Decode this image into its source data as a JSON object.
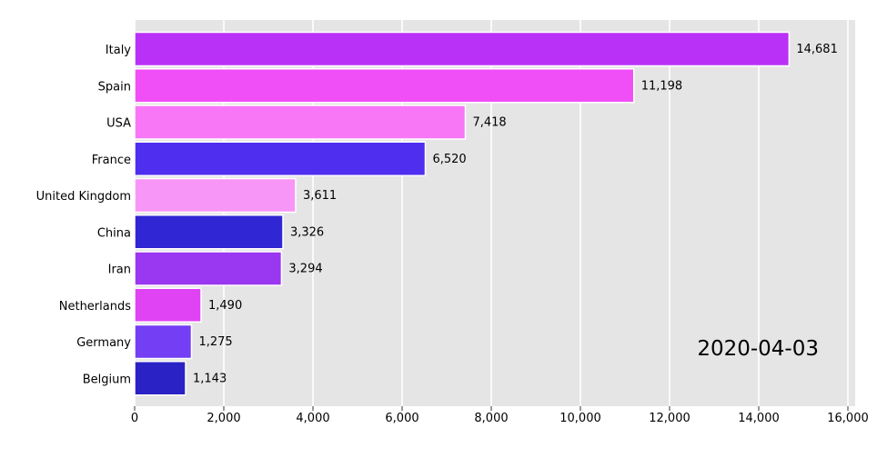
{
  "chart_data": {
    "type": "bar",
    "orientation": "horizontal",
    "annotation": "2020-04-03",
    "categories": [
      "Italy",
      "Spain",
      "USA",
      "France",
      "United Kingdom",
      "China",
      "Iran",
      "Netherlands",
      "Germany",
      "Belgium"
    ],
    "values": [
      14681,
      11198,
      7418,
      6520,
      3611,
      3326,
      3294,
      1490,
      1275,
      1143
    ],
    "value_labels": [
      "14,681",
      "11,198",
      "7,418",
      "6,520",
      "3,611",
      "3,326",
      "3,294",
      "1,490",
      "1,275",
      "1,143"
    ],
    "colors": [
      "#b930f7",
      "#f04ff7",
      "#f877f7",
      "#4f2ef0",
      "#f896f8",
      "#3026d3",
      "#9a37f0",
      "#df43f4",
      "#733ef4",
      "#2a22c5"
    ],
    "xlim": [
      0,
      16000
    ],
    "xticks": [
      0,
      2000,
      4000,
      6000,
      8000,
      10000,
      12000,
      14000,
      16000
    ],
    "xtick_labels": [
      "0",
      "2,000",
      "4,000",
      "6,000",
      "8,000",
      "10,000",
      "12,000",
      "14,000",
      "16,000"
    ],
    "grid": true,
    "background": "#e5e5e5",
    "title": "",
    "xlabel": "",
    "ylabel": ""
  }
}
